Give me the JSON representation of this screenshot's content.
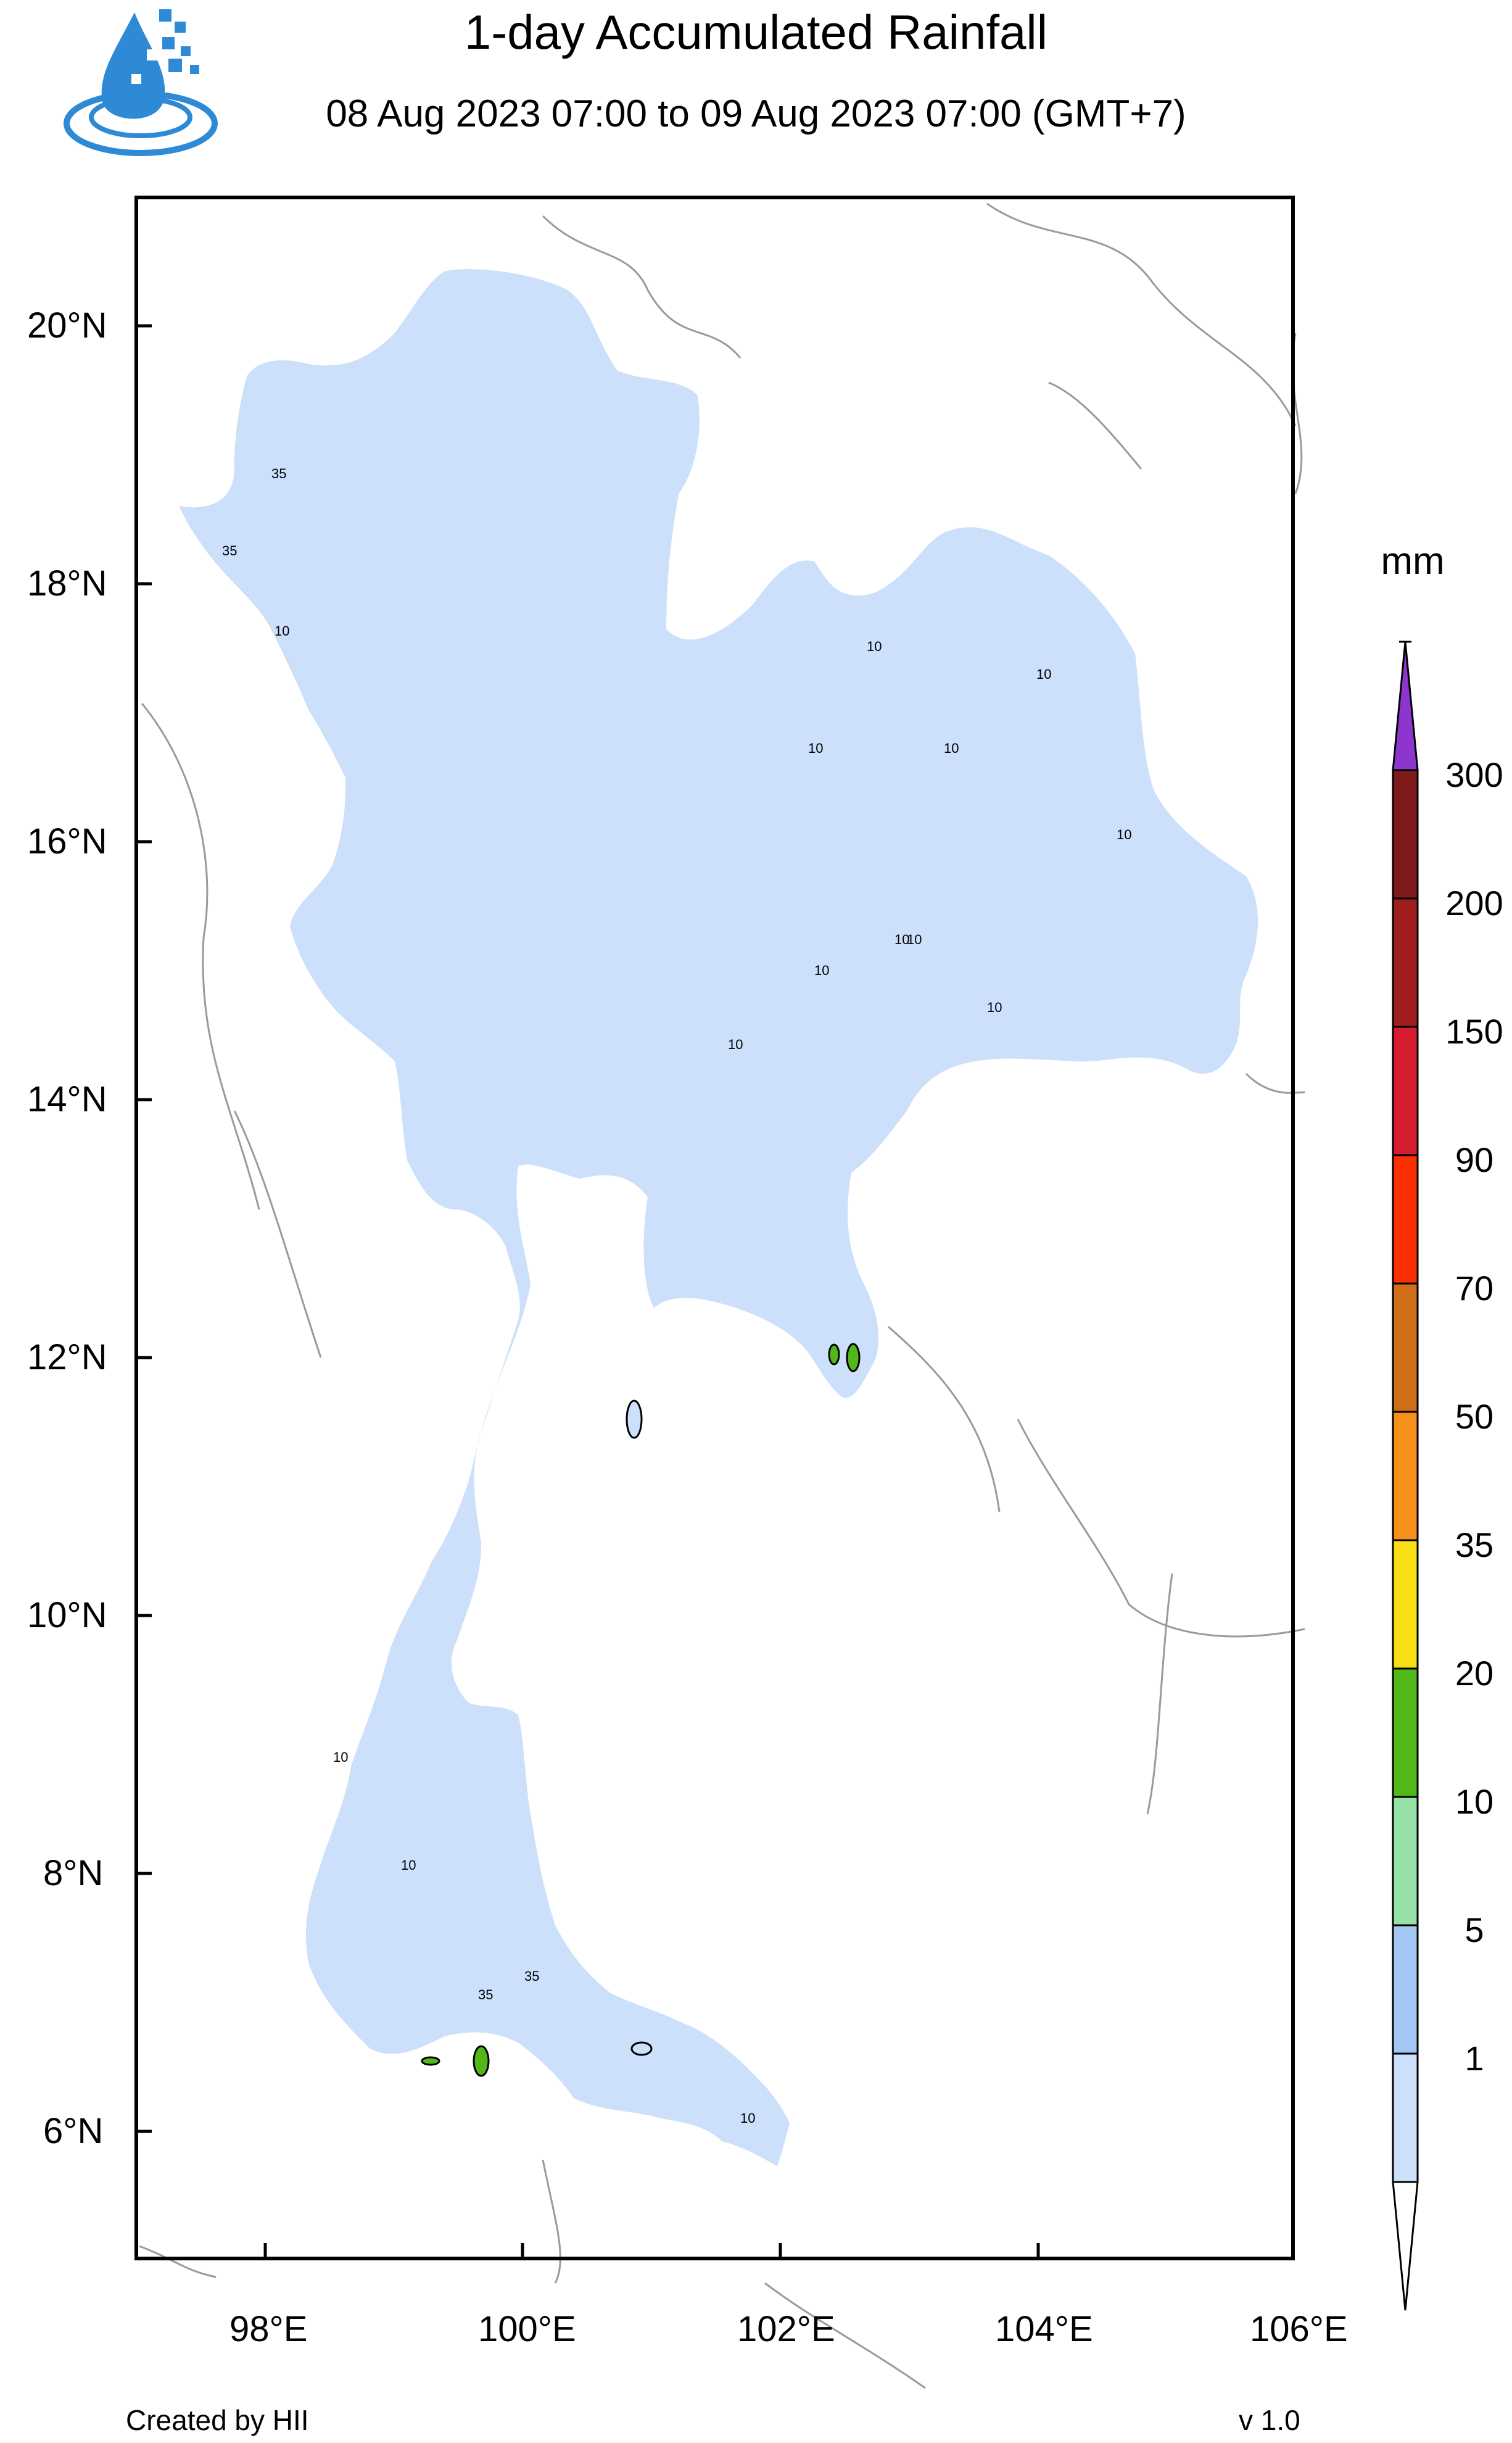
{
  "title": "1-day Accumulated Rainfall",
  "subtitle": "08 Aug 2023 07:00 to 09 Aug 2023 07:00 (GMT+7)",
  "legend": {
    "unit": "mm",
    "levels": [
      "1",
      "5",
      "10",
      "20",
      "35",
      "50",
      "70",
      "90",
      "150",
      "200",
      "300"
    ],
    "colors": [
      "#ffffff",
      "#cce0fb",
      "#a2c7f3",
      "#96e2a6",
      "#52b81a",
      "#f8de14",
      "#f7901a",
      "#cf6e17",
      "#fb2f00",
      "#d81c30",
      "#a01e1e",
      "#7f1a1a",
      "#8e34cf"
    ]
  },
  "axes": {
    "lat_ticks": [
      "20°N",
      "18°N",
      "16°N",
      "14°N",
      "12°N",
      "10°N",
      "8°N",
      "6°N"
    ],
    "lon_ticks": [
      "98°E",
      "100°E",
      "102°E",
      "104°E",
      "106°E"
    ]
  },
  "contour_labels": [
    "35",
    "35",
    "10",
    "35",
    "10",
    "10",
    "10",
    "10",
    "10",
    "10",
    "10",
    "10",
    "10",
    "10",
    "10",
    "35",
    "10",
    "10"
  ],
  "credit": "Created by HII",
  "version": "v 1.0",
  "colors": {
    "land_dry": "#ffffff",
    "light_rain": "#cce0fb",
    "moderate_rain": "#a2c7f3",
    "green_light": "#96e2a6",
    "green_dark": "#52b81a",
    "heavy": "#f8de14",
    "very_heavy": "#f7901a",
    "extreme": "#d81c30"
  },
  "icons": [
    "logo-droplet-icon",
    "colorbar-arrow-icon"
  ]
}
